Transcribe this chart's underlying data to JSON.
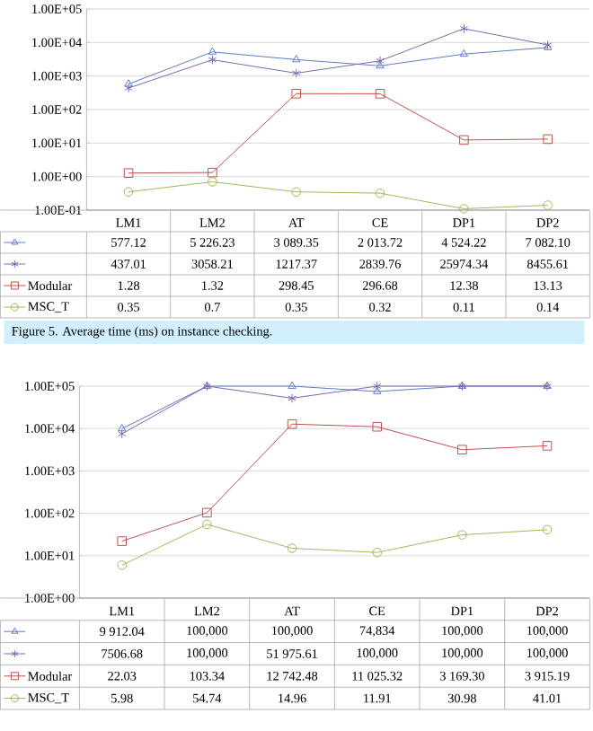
{
  "chart_data": [
    {
      "type": "line",
      "categories": [
        "LM1",
        "LM2",
        "AT",
        "CE",
        "DP1",
        "DP2"
      ],
      "log": "y",
      "grid": "y",
      "legend": "bottom",
      "line_style": "solid",
      "ylim": [
        0.1,
        100000
      ],
      "yticks": [
        {
          "value": 0.1,
          "label": "1.00E-01"
        },
        {
          "value": 1,
          "label": "1.00E+00"
        },
        {
          "value": 10,
          "label": "1.00E+01"
        },
        {
          "value": 100,
          "label": "1.00E+02"
        },
        {
          "value": 1000,
          "label": "1.00E+03"
        },
        {
          "value": 10000,
          "label": "1.00E+04"
        },
        {
          "value": 100000,
          "label": "1.00E+05"
        }
      ],
      "series": [
        {
          "color": "#5b7cc4",
          "marker": "triangle",
          "values": [
            577.12,
            5226.23,
            3089.35,
            2013.72,
            4524.22,
            7082.1
          ],
          "value_labels": [
            "577.12",
            "5 226.23",
            "3 089.35",
            "2 013.72",
            "4 524.22",
            "7 082.10"
          ]
        },
        {
          "color": "#7a68b0",
          "marker": "cross",
          "values": [
            437.01,
            3058.21,
            1217.37,
            2839.76,
            25974.34,
            8455.61
          ],
          "value_labels": [
            "437.01",
            "3058.21",
            "1217.37",
            "2839.76",
            "25974.34",
            "8455.61"
          ]
        },
        {
          "name": "Modular",
          "color": "#c0504d",
          "marker": "square",
          "values": [
            1.28,
            1.32,
            298.45,
            296.68,
            12.38,
            13.13
          ],
          "value_labels": [
            "1.28",
            "1.32",
            "298.45",
            "296.68",
            "12.38",
            "13.13"
          ]
        },
        {
          "name": "MSC_T",
          "color": "#9bbb59",
          "marker": "circle",
          "values": [
            0.35,
            0.7,
            0.35,
            0.32,
            0.11,
            0.14
          ],
          "value_labels": [
            "0.35",
            "0.7",
            "0.35",
            "0.32",
            "0.11",
            "0.14"
          ]
        }
      ],
      "annotations": [
        "Figure 5. Average time (ms) on instance checking."
      ]
    },
    {
      "type": "line",
      "categories": [
        "LM1",
        "LM2",
        "AT",
        "CE",
        "DP1",
        "DP2"
      ],
      "log": "y",
      "grid": "y",
      "legend": "bottom",
      "line_style": "solid",
      "ylim": [
        1,
        100000
      ],
      "yticks": [
        {
          "value": 1,
          "label": "1.00E+00"
        },
        {
          "value": 10,
          "label": "1.00E+01"
        },
        {
          "value": 100,
          "label": "1.00E+02"
        },
        {
          "value": 1000,
          "label": "1.00E+03"
        },
        {
          "value": 10000,
          "label": "1.00E+04"
        },
        {
          "value": 100000,
          "label": "1.00E+05"
        }
      ],
      "series": [
        {
          "color": "#5b7cc4",
          "marker": "triangle",
          "values": [
            9912.04,
            100000,
            100000,
            74834,
            100000,
            100000
          ],
          "value_labels": [
            "9 912.04",
            "100,000",
            "100,000",
            "74,834",
            "100,000",
            "100,000"
          ]
        },
        {
          "color": "#7a68b0",
          "marker": "cross",
          "values": [
            7506.68,
            100000,
            51975.61,
            100000,
            100000,
            100000
          ],
          "value_labels": [
            "7506.68",
            "100,000",
            "51 975.61",
            "100,000",
            "100,000",
            "100,000"
          ]
        },
        {
          "name": "Modular",
          "color": "#c0504d",
          "marker": "square",
          "values": [
            22.03,
            103.34,
            12742.48,
            11025.32,
            3169.3,
            3915.19
          ],
          "value_labels": [
            "22.03",
            "103.34",
            "12 742.48",
            "11 025.32",
            "3 169.30",
            "3 915.19"
          ]
        },
        {
          "name": "MSC_T",
          "color": "#9bbb59",
          "marker": "circle",
          "values": [
            5.98,
            54.74,
            14.96,
            11.91,
            30.98,
            41.01
          ],
          "value_labels": [
            "5.98",
            "54.74",
            "14.96",
            "11.91",
            "30.98",
            "41.01"
          ]
        }
      ]
    }
  ]
}
